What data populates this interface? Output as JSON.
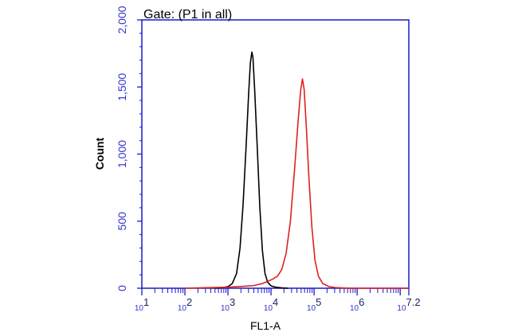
{
  "chart_data": {
    "type": "line",
    "title": "Gate: (P1 in all)",
    "xlabel": "FL1-A",
    "ylabel": "Count",
    "xscale": "log",
    "xlim": [
      1,
      7.2
    ],
    "ylim": [
      0,
      2000
    ],
    "x_tick_labels": [
      {
        "base": "10",
        "exp": "1"
      },
      {
        "base": "10",
        "exp": "2"
      },
      {
        "base": "10",
        "exp": "3"
      },
      {
        "base": "10",
        "exp": "4"
      },
      {
        "base": "10",
        "exp": "5"
      },
      {
        "base": "10",
        "exp": "6"
      },
      {
        "base": "10",
        "exp": "7.2"
      }
    ],
    "x_tick_decades": [
      1,
      2,
      3,
      4,
      5,
      6,
      7.2
    ],
    "y_ticks": [
      0,
      500,
      1000,
      1500,
      2000
    ],
    "y_tick_labels": [
      "0",
      "500",
      "1,000",
      "1,500",
      "2,000"
    ],
    "colors": {
      "axes": "#1a1acc",
      "ytick_text": "#3333cc",
      "text": "#000000"
    },
    "series": [
      {
        "color": "#000000",
        "points": [
          [
            2.7,
            0
          ],
          [
            2.85,
            4
          ],
          [
            3.0,
            12
          ],
          [
            3.1,
            35
          ],
          [
            3.2,
            110
          ],
          [
            3.28,
            300
          ],
          [
            3.35,
            620
          ],
          [
            3.42,
            1050
          ],
          [
            3.48,
            1450
          ],
          [
            3.52,
            1680
          ],
          [
            3.555,
            1760
          ],
          [
            3.58,
            1720
          ],
          [
            3.62,
            1480
          ],
          [
            3.68,
            1050
          ],
          [
            3.74,
            600
          ],
          [
            3.8,
            280
          ],
          [
            3.86,
            110
          ],
          [
            3.92,
            45
          ],
          [
            4.0,
            18
          ],
          [
            4.1,
            8
          ],
          [
            4.25,
            3
          ],
          [
            4.4,
            0
          ]
        ]
      },
      {
        "color": "#dd2222",
        "points": [
          [
            2.0,
            0
          ],
          [
            3.0,
            8
          ],
          [
            3.4,
            15
          ],
          [
            3.6,
            20
          ],
          [
            3.8,
            35
          ],
          [
            3.95,
            55
          ],
          [
            4.05,
            70
          ],
          [
            4.15,
            90
          ],
          [
            4.25,
            140
          ],
          [
            4.35,
            260
          ],
          [
            4.45,
            500
          ],
          [
            4.55,
            900
          ],
          [
            4.63,
            1250
          ],
          [
            4.69,
            1480
          ],
          [
            4.73,
            1560
          ],
          [
            4.77,
            1480
          ],
          [
            4.82,
            1200
          ],
          [
            4.88,
            820
          ],
          [
            4.95,
            450
          ],
          [
            5.02,
            210
          ],
          [
            5.1,
            90
          ],
          [
            5.2,
            35
          ],
          [
            5.35,
            12
          ],
          [
            5.5,
            5
          ],
          [
            5.8,
            0
          ],
          [
            7.2,
            0
          ]
        ]
      }
    ]
  }
}
